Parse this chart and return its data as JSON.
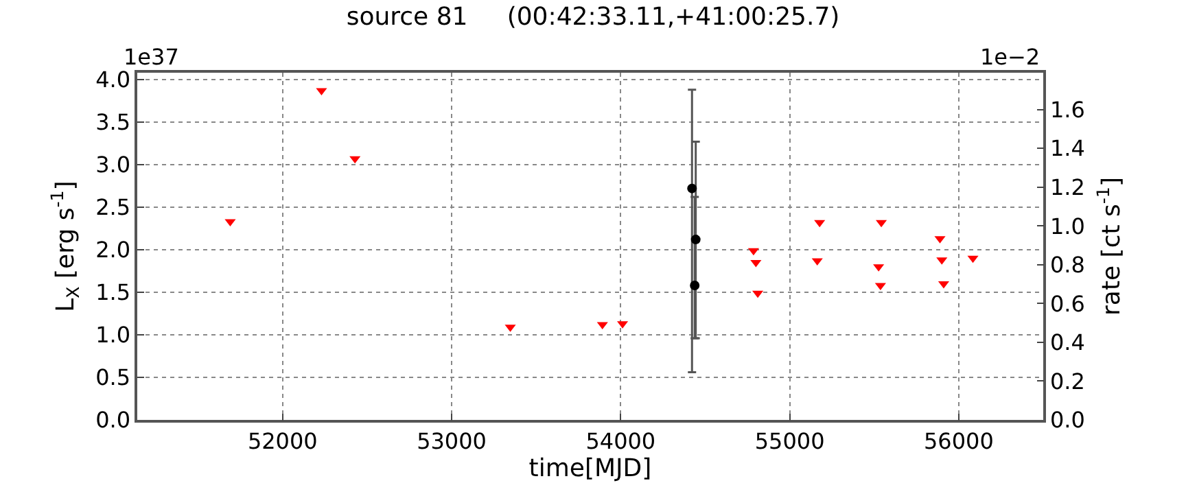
{
  "chart_data": {
    "type": "scatter",
    "title": "source 81     (00:42:33.11,+41:00:25.7)",
    "xlabel": "time[MJD]",
    "ylabel": "L$_{X}$ [erg s$^{-1}$]",
    "y2label": "rate [ct s$^{-1}$]",
    "annotations": [
      "1e37",
      "1e−2"
    ],
    "series": [
      {
        "marker": "triangle",
        "color": "#ff0000",
        "x": [
          51690,
          52230,
          52428,
          53347,
          53892,
          54011,
          54786,
          54800,
          54811,
          55163,
          55177,
          55526,
          55537,
          55542,
          55889,
          55900,
          55911,
          56084
        ],
        "values": [
          2.33,
          3.87,
          3.07,
          1.09,
          1.12,
          1.13,
          1.99,
          1.85,
          1.49,
          1.87,
          2.32,
          1.8,
          1.58,
          2.32,
          2.13,
          1.88,
          1.6,
          1.9
        ]
      },
      {
        "marker": "circle",
        "color": "#000000",
        "x": [
          54422,
          54444,
          54438
        ],
        "values": [
          2.72,
          2.12,
          1.58
        ],
        "errors": [
          [
            0.56,
            3.88
          ],
          [
            0.96,
            3.27
          ],
          [
            0.96,
            2.62
          ]
        ]
      }
    ],
    "xlim": [
      51140,
      56500
    ],
    "xticks": [
      52000,
      53000,
      54000,
      55000,
      56000
    ],
    "ylim": [
      0,
      4.08
    ],
    "yticks": [
      {
        "value": 0,
        "label": "0.0"
      },
      {
        "value": 0.5,
        "label": "0.5"
      },
      {
        "value": 1,
        "label": "1.0"
      },
      {
        "value": 1.5,
        "label": "1.5"
      },
      {
        "value": 2,
        "label": "2.0"
      },
      {
        "value": 2.5,
        "label": "2.5"
      },
      {
        "value": 3,
        "label": "3.0"
      },
      {
        "value": 3.5,
        "label": "3.5"
      },
      {
        "value": 4,
        "label": "4.0"
      }
    ],
    "y2lim": [
      0,
      1.79
    ],
    "y2ticks": [
      {
        "value": 0,
        "label": "0.0"
      },
      {
        "value": 0.2,
        "label": "0.2"
      },
      {
        "value": 0.4,
        "label": "0.4"
      },
      {
        "value": 0.6,
        "label": "0.6"
      },
      {
        "value": 0.8,
        "label": "0.8"
      },
      {
        "value": 1,
        "label": "1.0"
      },
      {
        "value": 1.2,
        "label": "1.2"
      },
      {
        "value": 1.4,
        "label": "1.4"
      },
      {
        "value": 1.6,
        "label": "1.6"
      }
    ],
    "grid": true
  }
}
